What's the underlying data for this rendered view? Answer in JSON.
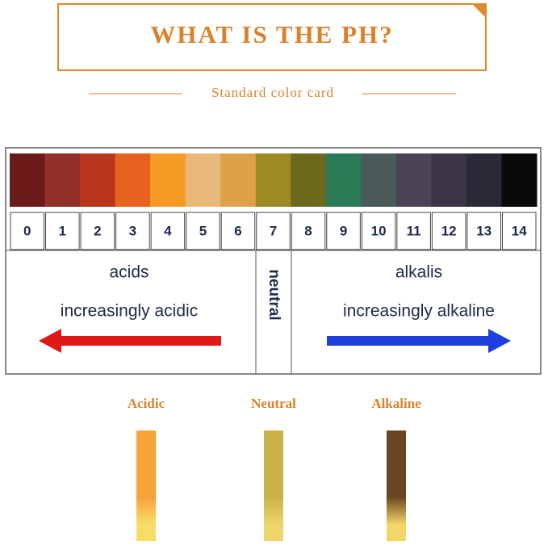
{
  "header": {
    "title": "WHAT IS THE PH?",
    "subtitle": "Standard color card"
  },
  "scale": [
    {
      "label": "0",
      "color": "#6b1a1a"
    },
    {
      "label": "1",
      "color": "#93302c"
    },
    {
      "label": "2",
      "color": "#b7361c"
    },
    {
      "label": "3",
      "color": "#e8621f"
    },
    {
      "label": "4",
      "color": "#f59a25"
    },
    {
      "label": "5",
      "color": "#e9b97a"
    },
    {
      "label": "6",
      "color": "#dea049"
    },
    {
      "label": "7",
      "color": "#9d8a25"
    },
    {
      "label": "8",
      "color": "#6e6a1d"
    },
    {
      "label": "9",
      "color": "#2b7a58"
    },
    {
      "label": "10",
      "color": "#4a5a58"
    },
    {
      "label": "11",
      "color": "#4b4457"
    },
    {
      "label": "12",
      "color": "#3a3446"
    },
    {
      "label": "13",
      "color": "#2c2835"
    },
    {
      "label": "14",
      "color": "#0a0a0a"
    }
  ],
  "acids": {
    "title": "acids",
    "subtitle": "increasingly acidic",
    "color": "#e01818"
  },
  "neutral": {
    "title": "neutral"
  },
  "alkalis": {
    "title": "alkalis",
    "subtitle": "increasingly alkaline",
    "color": "#1f3fe0"
  },
  "strips": [
    {
      "label": "Acidic",
      "top": "#f7a23a",
      "bottom": "#f8dc6a"
    },
    {
      "label": "Neutral",
      "top": "#c9b24a",
      "bottom": "#ecd66a"
    },
    {
      "label": "Alkaline",
      "top": "#6b4520",
      "bottom": "#f3d56a"
    }
  ]
}
